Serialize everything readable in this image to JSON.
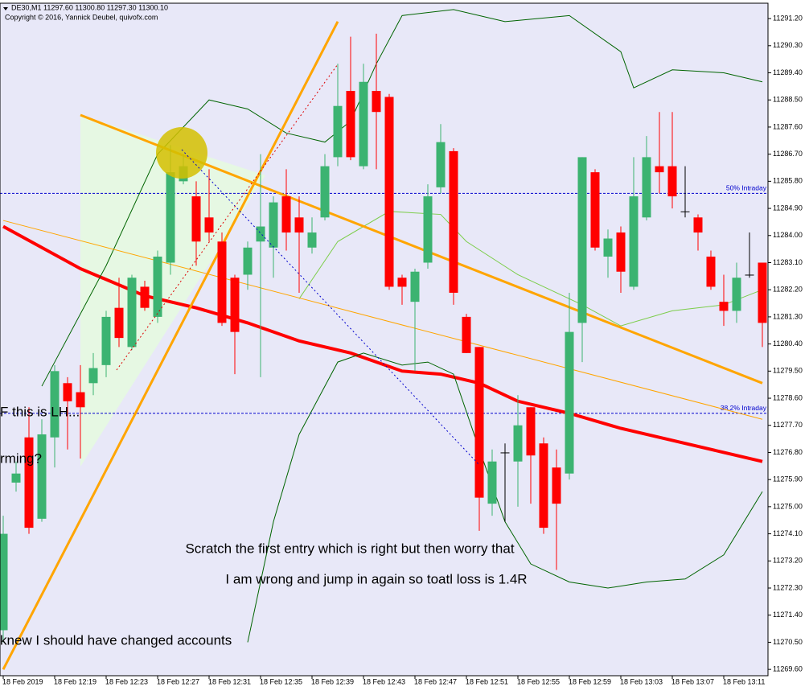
{
  "chart_data": {
    "type": "candlestick",
    "title": "DE30,M1  11297.60 11300.80 11297.30 11300.10",
    "subtitle": "Copyright © 2016, Yannick Deubel, quivofx.com",
    "categories": [
      "18 Feb 2019",
      null,
      null,
      null,
      "18 Feb 12:19",
      null,
      null,
      null,
      "18 Feb 12:23",
      null,
      null,
      null,
      "18 Feb 12:27",
      null,
      null,
      null,
      "18 Feb 12:31",
      null,
      null,
      null,
      "18 Feb 12:35",
      null,
      null,
      null,
      "18 Feb 12:39",
      null,
      null,
      null,
      "18 Feb 12:43",
      null,
      null,
      null,
      "18 Feb 12:47",
      null,
      null,
      null,
      "18 Feb 12:51",
      null,
      null,
      null,
      "18 Feb 12:55",
      null,
      null,
      null,
      "18 Feb 12:59",
      null,
      null,
      null,
      "18 Feb 13:03",
      null,
      null,
      null,
      "18 Feb 13:07",
      null,
      null,
      null,
      "18 Feb 13:11",
      null,
      null,
      null
    ],
    "open": [
      11270.9,
      11275.8,
      11277.3,
      11274.6,
      11277.3,
      11279.1,
      11278.8,
      11279.1,
      11279.7,
      11281.6,
      11280.3,
      11282.3,
      11281.3,
      11283.1,
      11285.8,
      11285.3,
      11284.6,
      11283.8,
      11282.6,
      11282.7,
      11283.8,
      11283.6,
      11285.3,
      11284.6,
      11283.6,
      11284.6,
      11286.6,
      11288.8,
      11286.3,
      11288.8,
      11288.6,
      11282.6,
      11281.8,
      11283.1,
      11285.6,
      11286.8,
      11281.3,
      11280.3,
      11275.1,
      11276.8,
      11276.5,
      11278.3,
      11277.1,
      11276.3,
      11276.1,
      11281.1,
      11286.1,
      11283.3,
      11284.1,
      11282.3,
      11284.6,
      11286.3,
      11286.3,
      11284.8,
      11284.6,
      11283.3,
      11281.8,
      11281.5,
      11282.7,
      11283.1
    ],
    "high": [
      11274.7,
      11276.5,
      11278.3,
      11277.9,
      11279.7,
      11279.3,
      11279.7,
      11280.1,
      11281.5,
      11282.6,
      11282.7,
      11282.5,
      11283.5,
      11287.0,
      11286.7,
      11285.8,
      11286.2,
      11284.1,
      11282.7,
      11283.8,
      11286.7,
      11285.3,
      11286.2,
      11285.3,
      11284.6,
      11286.7,
      11289.7,
      11290.6,
      11289.7,
      11290.7,
      11288.7,
      11282.7,
      11282.9,
      11285.7,
      11287.7,
      11286.9,
      11281.4,
      11280.3,
      11276.9,
      11277.1,
      11278.7,
      11278.3,
      11277.3,
      11276.9,
      11282.1,
      11286.6,
      11286.2,
      11284.2,
      11284.3,
      11286.6,
      11287.3,
      11288.1,
      11288.1,
      11286.3,
      11284.7,
      11283.5,
      11282.7,
      11283.1,
      11284.1,
      11283.1
    ],
    "low": [
      11270.5,
      11275.5,
      11274.1,
      11274.5,
      11276.3,
      11276.9,
      11276.6,
      11278.7,
      11279.3,
      11280.3,
      11280.2,
      11281.5,
      11281.1,
      11282.7,
      11285.7,
      11283.0,
      11283.8,
      11281.0,
      11279.4,
      11282.2,
      11279.3,
      11282.6,
      11283.5,
      11282.1,
      11283.4,
      11284.5,
      11286.3,
      11286.5,
      11286.2,
      11286.2,
      11282.2,
      11281.7,
      11279.5,
      11282.9,
      11285.4,
      11281.7,
      11280.1,
      11274.2,
      11274.7,
      11274.5,
      11275.0,
      11275.1,
      11274.1,
      11272.9,
      11275.9,
      11279.8,
      11283.5,
      11282.6,
      11282.1,
      11282.2,
      11284.5,
      11285.4,
      11284.9,
      11284.6,
      11283.5,
      11282.2,
      11281.0,
      11281.1,
      11282.6,
      11280.3
    ],
    "close": [
      11274.1,
      11276.1,
      11274.3,
      11277.4,
      11279.5,
      11278.5,
      11278.3,
      11279.6,
      11281.3,
      11280.6,
      11282.6,
      11281.6,
      11283.3,
      11286.1,
      11286.3,
      11283.8,
      11284.1,
      11281.1,
      11280.8,
      11283.6,
      11284.3,
      11285.1,
      11284.1,
      11284.1,
      11284.1,
      11286.3,
      11288.3,
      11286.6,
      11289.1,
      11288.1,
      11282.3,
      11282.3,
      11282.8,
      11285.3,
      11287.1,
      11282.1,
      11280.1,
      11275.3,
      11276.5,
      11276.8,
      11277.7,
      11276.7,
      11274.3,
      11275.1,
      11280.8,
      11286.6,
      11283.6,
      11283.9,
      11282.8,
      11285.3,
      11286.6,
      11286.1,
      11285.3,
      11284.8,
      11284.1,
      11282.3,
      11281.5,
      11282.6,
      11282.7,
      11281.1
    ],
    "colors": {
      "up": "#3cb371",
      "down": "#ff0000",
      "doji": "#000000"
    },
    "ylim": [
      11269.39,
      11291.71
    ],
    "yticks": [
      {
        "value": 11291.2,
        "label": "11291.20"
      },
      {
        "value": 11290.3,
        "label": "11290.30"
      },
      {
        "value": 11289.4,
        "label": "11289.40"
      },
      {
        "value": 11288.5,
        "label": "11288.50"
      },
      {
        "value": 11287.6,
        "label": "11287.60"
      },
      {
        "value": 11286.7,
        "label": "11286.70"
      },
      {
        "value": 11285.8,
        "label": "11285.80"
      },
      {
        "value": 11284.9,
        "label": "11284.90"
      },
      {
        "value": 11284.0,
        "label": "11284.00"
      },
      {
        "value": 11283.1,
        "label": "11283.10"
      },
      {
        "value": 11282.2,
        "label": "11282.20"
      },
      {
        "value": 11281.3,
        "label": "11281.30"
      },
      {
        "value": 11280.4,
        "label": "11280.40"
      },
      {
        "value": 11279.5,
        "label": "11279.50"
      },
      {
        "value": 11278.6,
        "label": "11278.60"
      },
      {
        "value": 11277.7,
        "label": "11277.70"
      },
      {
        "value": 11276.8,
        "label": "11276.80"
      },
      {
        "value": 11275.9,
        "label": "11275.90"
      },
      {
        "value": 11275.0,
        "label": "11275.00"
      },
      {
        "value": 11274.1,
        "label": "11274.10"
      },
      {
        "value": 11273.2,
        "label": "11273.20"
      },
      {
        "value": 11272.3,
        "label": "11272.30"
      },
      {
        "value": 11271.4,
        "label": "11271.40"
      },
      {
        "value": 11270.5,
        "label": "11270.50"
      },
      {
        "value": 11269.6,
        "label": "11269.60"
      }
    ],
    "grid": false,
    "lines": [
      {
        "color": "#ff0000",
        "width": 4,
        "x": [
          0,
          6,
          11,
          15,
          19,
          23,
          27,
          31,
          34,
          37,
          40,
          44,
          48,
          52,
          56,
          59
        ],
        "values": [
          11284.3,
          11282.9,
          11282.0,
          11281.6,
          11281.1,
          11280.5,
          11280.1,
          11279.5,
          11279.4,
          11279.1,
          11278.5,
          11278.1,
          11277.6,
          11277.2,
          11276.8,
          11276.5
        ]
      },
      {
        "color": "#006400",
        "width": 1,
        "x": [
          3,
          8,
          12,
          16,
          19,
          22,
          25,
          27,
          29,
          31,
          35,
          39,
          44,
          48,
          49,
          52,
          56,
          59
        ],
        "values": [
          11279.0,
          11283.0,
          11286.7,
          11288.5,
          11288.2,
          11287.4,
          11287.1,
          11287.8,
          11289.7,
          11291.3,
          11291.5,
          11291.1,
          11291.3,
          11290.1,
          11288.9,
          11289.5,
          11289.4,
          11289.1
        ]
      },
      {
        "color": "#006400",
        "width": 1,
        "x": [
          19,
          21,
          23,
          26,
          28,
          31,
          33,
          35,
          37,
          39,
          41,
          44,
          47,
          50,
          53,
          56,
          59
        ],
        "values": [
          11270.5,
          11274.5,
          11277.4,
          11279.8,
          11280.1,
          11279.7,
          11279.8,
          11279.4,
          11276.9,
          11274.5,
          11273.1,
          11272.5,
          11272.3,
          11272.5,
          11272.6,
          11273.4,
          11275.5
        ]
      },
      {
        "color": "#7ccd4a",
        "width": 1,
        "x": [
          23,
          26,
          30,
          34,
          36,
          40,
          45,
          48,
          52,
          56,
          59
        ],
        "values": [
          11281.9,
          11283.8,
          11284.8,
          11284.7,
          11283.8,
          11282.7,
          11281.7,
          11281.0,
          11281.5,
          11281.7,
          11282.2
        ]
      },
      {
        "color": "#ffa500",
        "width": 3,
        "x": [
          6,
          59
        ],
        "values": [
          11288.0,
          11279.1
        ]
      },
      {
        "color": "#ffa500",
        "width": 3,
        "x": [
          0,
          26
        ],
        "values": [
          11269.6,
          11291.1
        ]
      },
      {
        "color": "#ffa500",
        "width": 1,
        "x": [
          0,
          59
        ],
        "values": [
          11284.5,
          11277.9
        ]
      }
    ],
    "hlines": [
      {
        "value": 11285.4,
        "label": "50%   Intraday",
        "color": "#0000cd"
      },
      {
        "value": 11278.1,
        "label": "38.2%   Intraday",
        "color": "#0000cd"
      }
    ],
    "annotations": [
      "F this is LH...",
      "rming?",
      "Scratch the first entry which is right but then worry that",
      "I am wrong and jump in again so toatl loss is 1.4R",
      "knew I should have changed accounts"
    ]
  }
}
